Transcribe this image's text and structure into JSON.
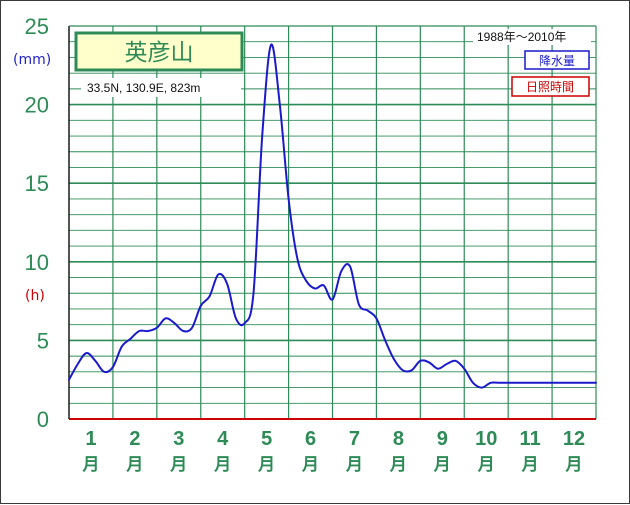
{
  "chart_data": {
    "type": "line",
    "title": "英彦山",
    "subtitle": "33.5N,  130.9E,  823m",
    "period": "1988年～2010年",
    "y_unit_precip": "(mm)",
    "y_unit_sun": "(h)",
    "ylim": [
      0,
      25
    ],
    "yticks": [
      "0",
      "5",
      "10",
      "15",
      "20",
      "25"
    ],
    "grid": true,
    "legend_position": "top-right",
    "legend": [
      {
        "label": "降水量",
        "color": "#1a1acc"
      },
      {
        "label": "日照時間",
        "color": "#cc0000"
      }
    ],
    "month_labels": [
      "1",
      "2",
      "3",
      "4",
      "5",
      "6",
      "7",
      "8",
      "9",
      "10",
      "11",
      "12"
    ],
    "month_suffix": "月",
    "series": [
      {
        "name": "降水量",
        "color": "#1a1acc",
        "x": [
          0,
          0.2,
          0.4,
          0.6,
          0.8,
          1.0,
          1.2,
          1.4,
          1.6,
          1.8,
          2.0,
          2.2,
          2.4,
          2.6,
          2.8,
          3.0,
          3.2,
          3.4,
          3.6,
          3.8,
          4.0,
          4.2,
          4.4,
          4.6,
          4.8,
          5.0,
          5.2,
          5.4,
          5.6,
          5.8,
          6.0,
          6.2,
          6.4,
          6.6,
          6.8,
          7.0,
          7.2,
          7.4,
          7.6,
          7.8,
          8.0,
          8.2,
          8.4,
          8.6,
          8.8,
          9.0,
          9.2,
          9.4,
          9.6,
          9.8,
          10.0,
          10.2,
          10.4,
          10.6,
          10.8,
          11.0,
          11.2,
          11.4,
          11.6,
          11.8,
          12.0
        ],
        "values": [
          2.5,
          3.5,
          4.2,
          3.7,
          3.0,
          3.3,
          4.6,
          5.1,
          5.6,
          5.6,
          5.8,
          6.4,
          6.1,
          5.6,
          5.8,
          7.2,
          7.8,
          9.2,
          8.6,
          6.4,
          6.1,
          8.0,
          18.0,
          23.8,
          20.0,
          14.0,
          10.2,
          8.8,
          8.3,
          8.5,
          7.6,
          9.4,
          9.7,
          7.3,
          6.9,
          6.4,
          5.0,
          3.8,
          3.1,
          3.1,
          3.7,
          3.6,
          3.2,
          3.5,
          3.7,
          3.2,
          2.3,
          2.0,
          2.3,
          2.3,
          2.3,
          2.3,
          2.3,
          2.3,
          2.3,
          2.3,
          2.3,
          2.3,
          2.3,
          2.3,
          2.3
        ]
      }
    ]
  }
}
